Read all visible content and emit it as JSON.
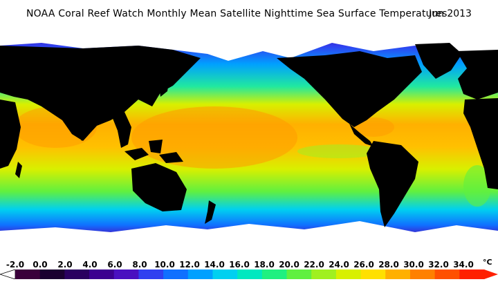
{
  "header": {
    "title": "NOAA Coral Reef Watch Monthly Mean Satellite Nighttime Sea Surface Temperatures",
    "date": "Jun 2013"
  },
  "legend": {
    "labels": [
      "-2.0",
      "0.0",
      "2.0",
      "4.0",
      "6.0",
      "8.0",
      "10.0",
      "12.0",
      "14.0",
      "16.0",
      "18.0",
      "20.0",
      "22.0",
      "24.0",
      "26.0",
      "28.0",
      "30.0",
      "32.0",
      "34.0"
    ],
    "unit": "°C",
    "colors": [
      "#3a003a",
      "#1a0030",
      "#2a0060",
      "#3b0090",
      "#4a10c0",
      "#3040f0",
      "#1070ff",
      "#00a0ff",
      "#00d0f0",
      "#00e8c0",
      "#20f080",
      "#60f040",
      "#a0f020",
      "#d8f000",
      "#ffe000",
      "#ffb000",
      "#ff8000",
      "#ff5000",
      "#ff2000"
    ]
  },
  "map_colors": {
    "land": "#000000",
    "ice": "#ffffff",
    "polar_dark": "#2a0050",
    "polar": "#4a10c0",
    "cold": "#1070ff",
    "cool": "#00c8f0",
    "mild": "#20e8a0",
    "temperate": "#a0f020",
    "warm": "#ffe000",
    "hot": "#ff9a00"
  }
}
